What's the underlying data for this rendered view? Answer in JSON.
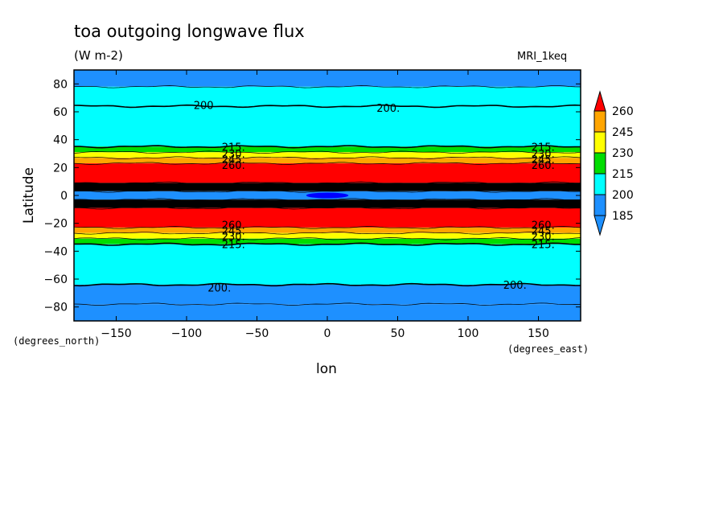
{
  "colors": {
    "185": "#1e90ff",
    "200": "#00ffff",
    "215": "#00dd00",
    "230": "#ffff00",
    "245": "#ffa500",
    "260": "#ff0000",
    "above_260": "#000000",
    "below_185": "#0000ff"
  },
  "chart_data": {
    "type": "heatmap",
    "title": "toa outgoing longwave flux",
    "units": "(W m-2)",
    "model": "MRI_1keq",
    "xlabel": "lon",
    "ylabel": "Latitude",
    "x_units": "(degrees_east)",
    "y_units": "(degrees_north)",
    "xlim": [
      -180,
      180
    ],
    "ylim": [
      -90,
      90
    ],
    "x_ticks": [
      -150,
      -100,
      -50,
      0,
      50,
      100,
      150
    ],
    "y_ticks": [
      80,
      60,
      40,
      20,
      0,
      -20,
      -40,
      -60,
      -80
    ],
    "colorbar_levels": [
      185,
      200,
      215,
      230,
      245,
      260
    ],
    "zonal_bands": [
      {
        "lat_from": 78,
        "lat_to": 90,
        "level": "185"
      },
      {
        "lat_from": 64,
        "lat_to": 78,
        "level": "200"
      },
      {
        "lat_from": 35,
        "lat_to": 64,
        "level": "200"
      },
      {
        "lat_from": 31,
        "lat_to": 35,
        "level": "215"
      },
      {
        "lat_from": 27,
        "lat_to": 31,
        "level": "230"
      },
      {
        "lat_from": 23,
        "lat_to": 27,
        "level": "245"
      },
      {
        "lat_from": 9,
        "lat_to": 23,
        "level": "260"
      },
      {
        "lat_from": 3,
        "lat_to": 9,
        "level": "above_260"
      },
      {
        "lat_from": -3,
        "lat_to": 3,
        "level": "185"
      },
      {
        "lat_from": -9,
        "lat_to": -3,
        "level": "above_260"
      },
      {
        "lat_from": -23,
        "lat_to": -9,
        "level": "260"
      },
      {
        "lat_from": -27,
        "lat_to": -23,
        "level": "245"
      },
      {
        "lat_from": -31,
        "lat_to": -27,
        "level": "230"
      },
      {
        "lat_from": -35,
        "lat_to": -31,
        "level": "215"
      },
      {
        "lat_from": -64,
        "lat_to": -35,
        "level": "200"
      },
      {
        "lat_from": -78,
        "lat_to": -64,
        "level": "185"
      },
      {
        "lat_from": -90,
        "lat_to": -78,
        "level": "185"
      }
    ],
    "equatorial_minimum": {
      "lon_from": -15,
      "lon_to": 15,
      "lat_from": -2,
      "lat_to": 2,
      "level": "below_185"
    },
    "contour_labels": [
      {
        "text": "200",
        "lon": -95,
        "lat": 65
      },
      {
        "text": "200.",
        "lon": 35,
        "lat": 63
      },
      {
        "text": "200.",
        "lon": -85,
        "lat": -66
      },
      {
        "text": "200.",
        "lon": 125,
        "lat": -64
      },
      {
        "text": "215.",
        "lon": -75,
        "lat": 35
      },
      {
        "text": "230.",
        "lon": -75,
        "lat": 30
      },
      {
        "text": "245.",
        "lon": -75,
        "lat": 26
      },
      {
        "text": "260.",
        "lon": -75,
        "lat": 22
      },
      {
        "text": "215.",
        "lon": 145,
        "lat": 35
      },
      {
        "text": "230.",
        "lon": 145,
        "lat": 30
      },
      {
        "text": "245.",
        "lon": 145,
        "lat": 26
      },
      {
        "text": "260.",
        "lon": 145,
        "lat": 22
      },
      {
        "text": "260.",
        "lon": -75,
        "lat": -21
      },
      {
        "text": "245.",
        "lon": -75,
        "lat": -25
      },
      {
        "text": "230.",
        "lon": -75,
        "lat": -29
      },
      {
        "text": "215.",
        "lon": -75,
        "lat": -35
      },
      {
        "text": "260.",
        "lon": 145,
        "lat": -21
      },
      {
        "text": "245.",
        "lon": 145,
        "lat": -25
      },
      {
        "text": "230.",
        "lon": 145,
        "lat": -29
      },
      {
        "text": "215.",
        "lon": 145,
        "lat": -35
      }
    ]
  }
}
